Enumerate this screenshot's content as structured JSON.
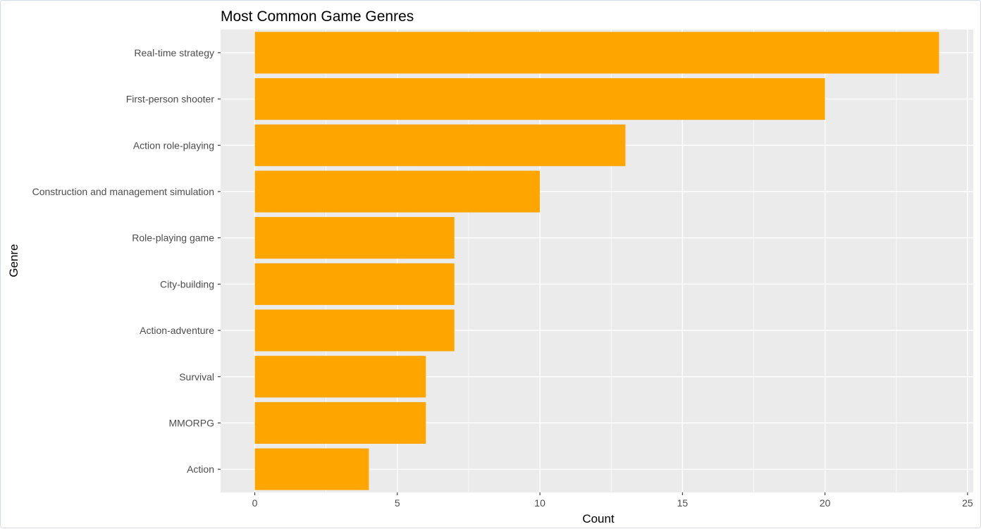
{
  "chart_data": {
    "type": "bar",
    "orientation": "horizontal",
    "title": "Most Common Game Genres",
    "xlabel": "Count",
    "ylabel": "Genre",
    "categories": [
      "Real-time strategy",
      "First-person shooter",
      "Action role-playing",
      "Construction and management simulation",
      "Role-playing game",
      "City-building",
      "Action-adventure",
      "Survival",
      "MMORPG",
      "Action"
    ],
    "values": [
      24,
      20,
      13,
      10,
      7,
      7,
      7,
      6,
      6,
      4
    ],
    "xlim": [
      -1.2,
      25.2
    ],
    "xticks": [
      0,
      5,
      10,
      15,
      20,
      25
    ],
    "xtick_labels": [
      "0",
      "5",
      "10",
      "15",
      "20",
      "25"
    ],
    "grid": true,
    "legend": "none",
    "colors": {
      "bar": "#FFA500",
      "panel_background": "#EBEBEB",
      "grid": "#FFFFFF"
    }
  }
}
